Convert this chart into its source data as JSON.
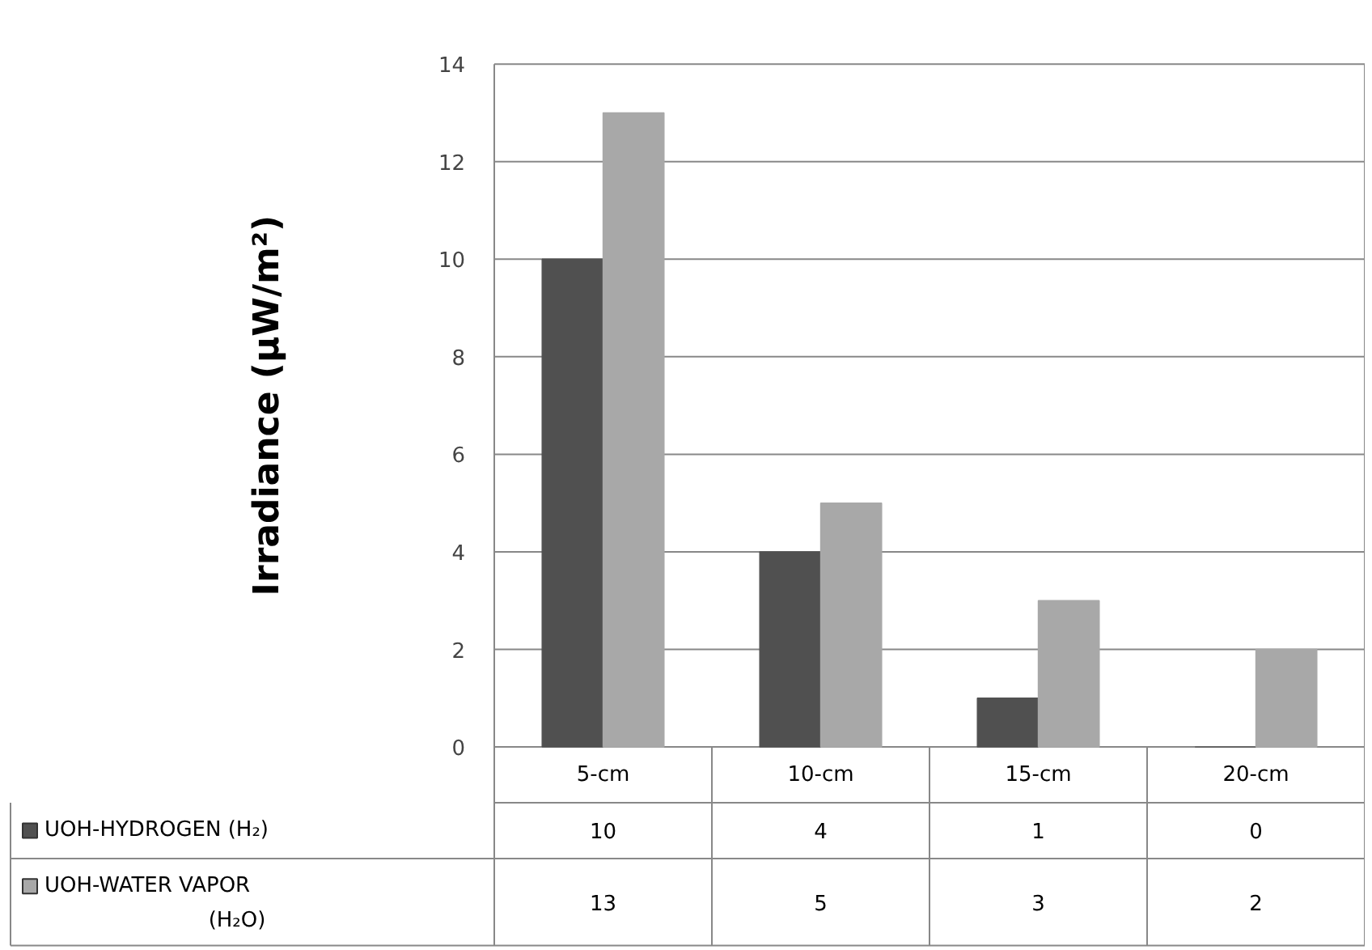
{
  "chart_data": {
    "type": "bar",
    "ylabel": "Irradiance (μW/m²)",
    "categories": [
      "5-cm",
      "10-cm",
      "15-cm",
      "20-cm"
    ],
    "series": [
      {
        "name": "UOH-HYDROGEN (H₂)",
        "color": "#505050",
        "values": [
          10,
          4,
          1,
          0
        ]
      },
      {
        "name": "UOH-WATER VAPOR (H₂O)",
        "color": "#a8a8a8",
        "values": [
          13,
          5,
          3,
          2
        ]
      }
    ],
    "ylim": [
      0,
      14
    ],
    "yticks": [
      0,
      2,
      4,
      6,
      8,
      10,
      12,
      14
    ],
    "grid": "y",
    "legend": "bottom",
    "data_labels": true
  }
}
